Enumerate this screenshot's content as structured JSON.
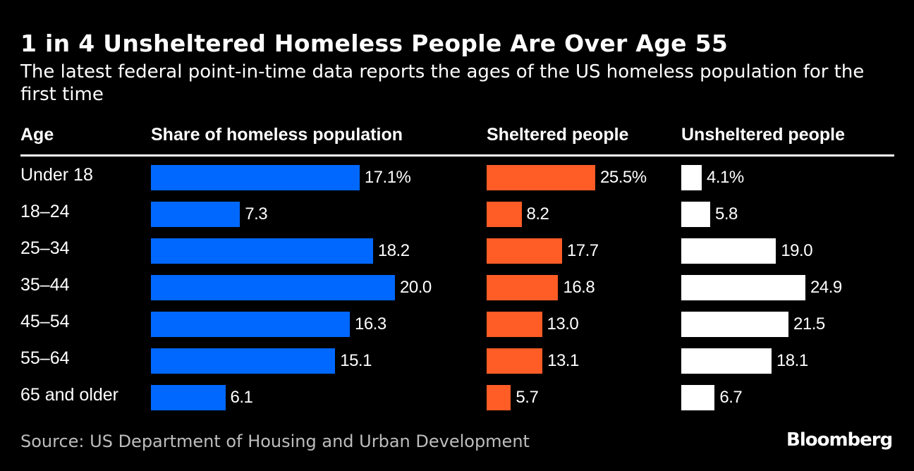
{
  "chart_data": {
    "type": "bar",
    "title": "1 in 4 Unsheltered Homeless People Are Over Age 55",
    "subtitle": "The latest federal point-in-time data reports the ages of the US homeless population for the first time",
    "category_header": "Age",
    "categories": [
      "Under 18",
      "18–24",
      "25–34",
      "35–44",
      "45–54",
      "55–64",
      "65 and older"
    ],
    "series": [
      {
        "name": "Share of homeless population",
        "color": "#0068ff",
        "values": [
          17.1,
          7.3,
          18.2,
          20.0,
          16.3,
          15.1,
          6.1
        ],
        "labels": [
          "17.1%",
          "7.3",
          "18.2",
          "20.0",
          "16.3",
          "15.1",
          "6.1"
        ]
      },
      {
        "name": "Sheltered people",
        "color": "#ff5c26",
        "values": [
          25.5,
          8.2,
          17.7,
          16.8,
          13.0,
          13.1,
          5.7
        ],
        "labels": [
          "25.5%",
          "8.2",
          "17.7",
          "16.8",
          "13.0",
          "13.1",
          "5.7"
        ]
      },
      {
        "name": "Unsheltered people",
        "color": "#ffffff",
        "values": [
          4.1,
          5.8,
          19.0,
          24.9,
          21.5,
          18.1,
          6.7
        ],
        "labels": [
          "4.1%",
          "5.8",
          "19.0",
          "24.9",
          "21.5",
          "18.1",
          "6.7"
        ]
      }
    ],
    "xlabel": "",
    "ylabel": "",
    "grid": false
  },
  "source": "Source: US Department of Housing and Urban Development",
  "logo": "Bloomberg"
}
